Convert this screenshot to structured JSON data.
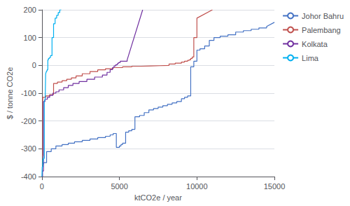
{
  "chart_data": {
    "type": "line",
    "xlabel": "ktCO2e / year",
    "ylabel": "$ / tonne CO2e",
    "xlim": [
      0,
      15000
    ],
    "ylim": [
      -400,
      200
    ],
    "xticks": [
      0,
      5000,
      10000,
      15000
    ],
    "yticks": [
      -400,
      -300,
      -200,
      -100,
      0,
      100,
      200
    ],
    "grid": true,
    "legend": "right",
    "series": [
      {
        "name": "Johor Bahru",
        "color": "#4472c4",
        "x": [
          0,
          100,
          100,
          300,
          300,
          600,
          600,
          900,
          900,
          1300,
          1300,
          1700,
          1700,
          2100,
          2100,
          2600,
          2600,
          3100,
          3100,
          3600,
          3600,
          4100,
          4100,
          4400,
          4400,
          4600,
          4600,
          4800,
          4800,
          5000,
          5000,
          5100,
          5100,
          5200,
          5200,
          5400,
          5400,
          5600,
          5600,
          5800,
          5800,
          6000,
          6000,
          6300,
          6300,
          6600,
          6600,
          6900,
          6900,
          7200,
          7200,
          7500,
          7500,
          7800,
          7800,
          8100,
          8100,
          8400,
          8400,
          8700,
          8700,
          9000,
          9000,
          9200,
          9200,
          9400,
          9400,
          9600,
          9600,
          9800,
          9800,
          10000,
          10000,
          10200,
          10200,
          10500,
          10500,
          10800,
          10800,
          11100,
          11100,
          11500,
          11500,
          12000,
          12000,
          12500,
          12500,
          13000,
          13000,
          13500,
          13500,
          14000,
          14000,
          14500,
          14500,
          15000
        ],
        "values": [
          -355,
          -355,
          -350,
          -350,
          -310,
          -310,
          -300,
          -300,
          -290,
          -290,
          -285,
          -285,
          -280,
          -280,
          -275,
          -275,
          -270,
          -270,
          -265,
          -265,
          -260,
          -260,
          -255,
          -255,
          -250,
          -250,
          -245,
          -245,
          -295,
          -295,
          -290,
          -290,
          -285,
          -285,
          -280,
          -280,
          -240,
          -240,
          -235,
          -235,
          -230,
          -230,
          -185,
          -185,
          -180,
          -180,
          -170,
          -170,
          -160,
          -160,
          -155,
          -155,
          -150,
          -150,
          -145,
          -145,
          -140,
          -140,
          -135,
          -135,
          -130,
          -130,
          -120,
          -120,
          -115,
          -115,
          -110,
          -110,
          -5,
          -5,
          15,
          15,
          55,
          55,
          60,
          60,
          70,
          70,
          90,
          90,
          100,
          100,
          105,
          105,
          110,
          110,
          120,
          120,
          125,
          125,
          130,
          130,
          135,
          135,
          140,
          155
        ]
      },
      {
        "name": "Palembang",
        "color": "#c0504d",
        "x": [
          0,
          50,
          50,
          250,
          250,
          500,
          500,
          750,
          750,
          1000,
          1000,
          1300,
          1300,
          1600,
          1600,
          1900,
          1900,
          2200,
          2200,
          2600,
          2600,
          3100,
          3100,
          3600,
          3600,
          4100,
          4100,
          4600,
          4600,
          5200,
          5200,
          5800,
          5800,
          6400,
          6400,
          7000,
          7000,
          7600,
          7600,
          8200,
          8200,
          8600,
          8600,
          9000,
          9000,
          9200,
          9200,
          9400,
          9400,
          9500,
          9500,
          9600,
          9600,
          9700,
          9700,
          9800,
          9800,
          10000,
          10000,
          11000
        ],
        "values": [
          -325,
          -325,
          -115,
          -115,
          -110,
          -110,
          -105,
          -105,
          -65,
          -65,
          -60,
          -60,
          -55,
          -55,
          -50,
          -50,
          -45,
          -45,
          -38,
          -38,
          -30,
          -30,
          -22,
          -22,
          -16,
          -16,
          -12,
          -12,
          -8,
          -8,
          -5,
          -5,
          -3,
          -3,
          -2,
          -2,
          -1,
          -1,
          0,
          0,
          5,
          5,
          8,
          8,
          12,
          12,
          15,
          15,
          18,
          18,
          20,
          20,
          25,
          25,
          30,
          30,
          100,
          100,
          170,
          200
        ]
      },
      {
        "name": "Kolkata",
        "color": "#7030a0",
        "x": [
          0,
          40,
          40,
          100,
          100,
          200,
          200,
          350,
          350,
          500,
          500,
          700,
          700,
          900,
          900,
          1100,
          1100,
          1400,
          1400,
          1700,
          1700,
          2000,
          2000,
          2400,
          2400,
          2900,
          2900,
          3400,
          3400,
          3900,
          3900,
          4200,
          4200,
          4400,
          4400,
          4550,
          4550,
          4650,
          4650,
          4750,
          4750,
          4850,
          4850,
          4900,
          4900,
          4950,
          4950,
          5050,
          5050,
          5500,
          5500,
          6500
        ],
        "values": [
          -400,
          -400,
          -380,
          -380,
          -130,
          -130,
          -122,
          -122,
          -115,
          -115,
          -108,
          -108,
          -100,
          -100,
          -95,
          -95,
          -88,
          -88,
          -80,
          -80,
          -72,
          -72,
          -65,
          -65,
          -58,
          -58,
          -50,
          -50,
          -42,
          -42,
          -35,
          -35,
          -25,
          -25,
          -15,
          -15,
          -8,
          -8,
          -2,
          -2,
          2,
          2,
          5,
          5,
          8,
          8,
          10,
          10,
          15,
          15,
          20,
          200
        ]
      },
      {
        "name": "Lima",
        "color": "#00b0f0",
        "x": [
          0,
          20,
          20,
          60,
          60,
          100,
          100,
          150,
          150,
          180,
          180,
          210,
          210,
          240,
          240,
          270,
          270,
          300,
          300,
          340,
          340,
          380,
          380,
          420,
          420,
          480,
          480,
          550,
          550,
          650,
          650,
          750,
          750,
          850,
          850,
          950,
          950,
          1050,
          1050,
          1150,
          1150,
          1250
        ],
        "values": [
          -400,
          -400,
          -365,
          -365,
          -340,
          -340,
          -335,
          -335,
          -130,
          -130,
          -125,
          -125,
          -120,
          -120,
          -30,
          -30,
          -25,
          -25,
          -20,
          -20,
          -15,
          -15,
          20,
          20,
          25,
          25,
          28,
          28,
          35,
          35,
          100,
          100,
          150,
          150,
          170,
          170,
          180,
          180,
          190,
          190,
          200,
          200
        ]
      }
    ]
  }
}
